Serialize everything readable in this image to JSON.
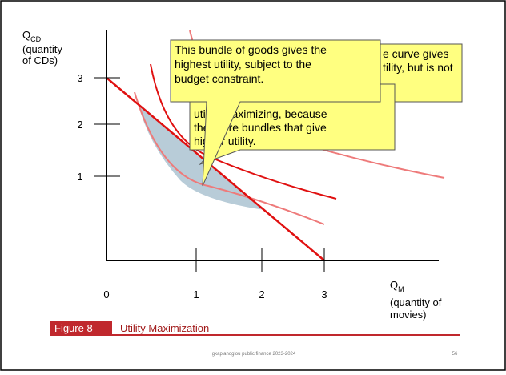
{
  "axes": {
    "y_label": {
      "main": "Q",
      "sub": "CD",
      "note": [
        "(quantity",
        "of CDs)"
      ]
    },
    "x_label": {
      "main": "Q",
      "sub": "M",
      "note": [
        "(quantity of",
        "movies)"
      ]
    },
    "y_ticks": [
      "1",
      "2",
      "3"
    ],
    "x_ticks": [
      "0",
      "1",
      "2",
      "3"
    ]
  },
  "callouts": [
    {
      "lines": [
        "e curve gives",
        "tility, but is not"
      ]
    },
    {
      "lines": [
        "utility maximizing, because",
        "there are bundles that give",
        "higher utility."
      ]
    },
    {
      "lines": [
        "This bundle of goods gives the",
        "highest utility, subject to the",
        "budget constraint."
      ]
    }
  ],
  "figure": {
    "label": "Figure 8",
    "title": "Utility Maximization"
  },
  "footer": {
    "text": "gkaplanoglou public finance 2023-2024",
    "page": "56"
  }
}
